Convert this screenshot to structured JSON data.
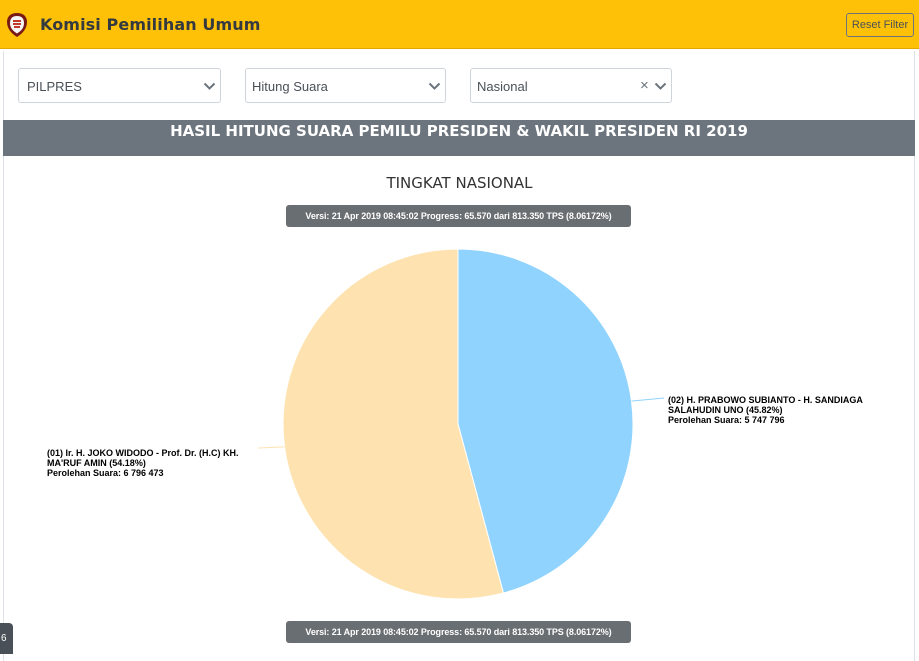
{
  "header": {
    "logo_icon": "kpu-logo-icon",
    "title": "Komisi Pemilihan Umum",
    "reset_label": "Reset Filter"
  },
  "filters": {
    "election": "PILPRES",
    "mode": "Hitung Suara",
    "region": "Nasional",
    "clear_icon": "×"
  },
  "banner": "HASIL HITUNG SUARA PEMILU PRESIDEN & WAKIL PRESIDEN RI 2019",
  "chart_data": {
    "type": "pie",
    "title": "TINGKAT NASIONAL",
    "version_note": "Versi: 21 Apr 2019 08:45:02 Progress: 65.570 dari 813.350 TPS (8.06172%)",
    "slices": [
      {
        "label": "(02) H. PRABOWO SUBIANTO - H. SANDIAGA SALAHUDIN UNO (45.82%)",
        "label_lines": [
          "(02) H. PRABOWO SUBIANTO - H. SANDIAGA",
          "SALAHUDIN UNO (45.82%)"
        ],
        "vote_text": "Perolehan Suara: 5 747 796",
        "votes": 5747796,
        "percent": 45.82,
        "color": "#8fd3fe"
      },
      {
        "label": "(01) Ir. H. JOKO WIDODO - Prof. Dr. (H.C) KH. MA'RUF AMIN (54.18%)",
        "label_lines": [
          "(01) Ir. H. JOKO WIDODO - Prof. Dr. (H.C) KH.",
          "MA'RUF AMIN (54.18%)"
        ],
        "vote_text": "Perolehan Suara: 6 796 473",
        "votes": 6796473,
        "percent": 54.18,
        "color": "#fee3b1"
      }
    ]
  },
  "colors": {
    "header_bg": "#ffc107",
    "banner_bg": "#6c757d",
    "tooltip_bg": "#696e73"
  },
  "corner_tab_text": "6"
}
